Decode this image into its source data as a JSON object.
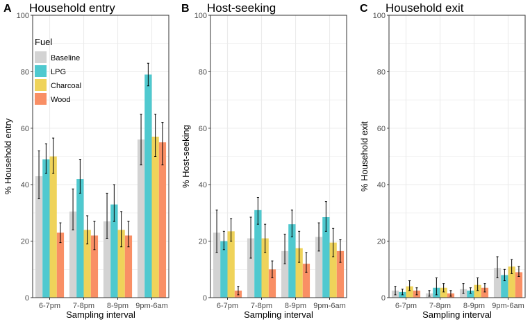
{
  "chart_data": {
    "type": "bar",
    "categories": [
      "6-7pm",
      "7-8pm",
      "8-9pm",
      "9pm-6am"
    ],
    "xlabel": "Sampling interval",
    "ylim": [
      0,
      100
    ],
    "yticks": [
      0,
      20,
      40,
      60,
      80,
      100
    ],
    "grid": true,
    "legend": {
      "title": "Fuel",
      "placement": "top-left inside panel A",
      "entries": [
        "Baseline",
        "LPG",
        "Charcoal",
        "Wood"
      ]
    },
    "colors": {
      "Baseline": "#d3d3d3",
      "LPG": "#4fc9cf",
      "Charcoal": "#efd35a",
      "Wood": "#f98f65",
      "gridline": "#ebebeb",
      "errorbar": "#000000"
    },
    "panels": [
      {
        "letter": "A",
        "title": "Household entry",
        "ylabel": "% Household entry",
        "series": [
          {
            "name": "Baseline",
            "values": [
              43,
              30.5,
              27,
              56
            ],
            "lower": [
              35,
              24,
              21,
              47
            ],
            "upper": [
              52,
              38.5,
              37,
              65
            ]
          },
          {
            "name": "LPG",
            "values": [
              49,
              42,
              33,
              79
            ],
            "lower": [
              44,
              37,
              27,
              75
            ],
            "upper": [
              54.5,
              49,
              40,
              83
            ]
          },
          {
            "name": "Charcoal",
            "values": [
              50,
              24,
              24,
              57
            ],
            "lower": [
              44,
              19,
              18,
              50
            ],
            "upper": [
              56.5,
              29,
              30.5,
              65
            ]
          },
          {
            "name": "Wood",
            "values": [
              23,
              22,
              22,
              55
            ],
            "lower": [
              19.5,
              17,
              18,
              47
            ],
            "upper": [
              26.5,
              27,
              27,
              62
            ]
          }
        ]
      },
      {
        "letter": "B",
        "title": "Host-seeking",
        "ylabel": "% Host-seeking",
        "series": [
          {
            "name": "Baseline",
            "values": [
              23,
              21,
              16.5,
              21.5
            ],
            "lower": [
              16,
              14,
              12,
              16.5
            ],
            "upper": [
              31,
              28.5,
              22.5,
              26.5
            ]
          },
          {
            "name": "LPG",
            "values": [
              20,
              31,
              26,
              28.5
            ],
            "lower": [
              17,
              26,
              21.5,
              23.5
            ],
            "upper": [
              23.5,
              35.5,
              31,
              34
            ]
          },
          {
            "name": "Charcoal",
            "values": [
              23.5,
              21,
              17.5,
              19.5
            ],
            "lower": [
              20,
              16,
              12.5,
              14.5
            ],
            "upper": [
              28,
              26,
              23.5,
              24.5
            ]
          },
          {
            "name": "Wood",
            "values": [
              2.5,
              10,
              12,
              16.5
            ],
            "lower": [
              1,
              7,
              9,
              12.5
            ],
            "upper": [
              4,
              13,
              16,
              20.5
            ]
          }
        ]
      },
      {
        "letter": "C",
        "title": "Household exit",
        "ylabel": "% Household exit",
        "series": [
          {
            "name": "Baseline",
            "values": [
              2.5,
              1.5,
              3,
              10.5
            ],
            "lower": [
              1,
              0.5,
              1.5,
              7
            ],
            "upper": [
              4,
              2.5,
              5,
              14.5
            ]
          },
          {
            "name": "LPG",
            "values": [
              2,
              3.5,
              2.5,
              8
            ],
            "lower": [
              1,
              1,
              1.5,
              6
            ],
            "upper": [
              3,
              7,
              3.5,
              10
            ]
          },
          {
            "name": "Charcoal",
            "values": [
              4,
              3.5,
              4.5,
              11
            ],
            "lower": [
              2.5,
              2,
              2.5,
              8.5
            ],
            "upper": [
              6,
              5,
              7,
              13.5
            ]
          },
          {
            "name": "Wood",
            "values": [
              2.5,
              1.5,
              3.5,
              9
            ],
            "lower": [
              1,
              0.5,
              2,
              7.5
            ],
            "upper": [
              3.5,
              2.5,
              5,
              11
            ]
          }
        ]
      }
    ]
  }
}
